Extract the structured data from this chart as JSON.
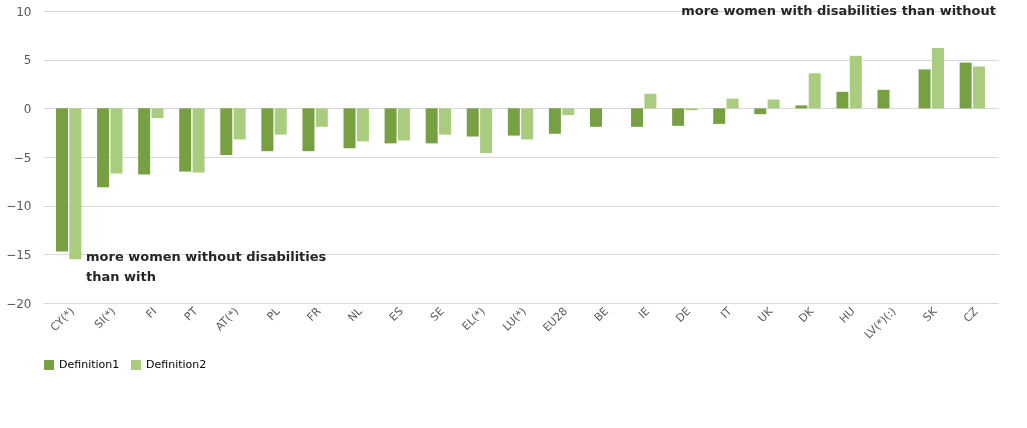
{
  "chart_data": {
    "type": "bar",
    "categories": [
      "CY(*)",
      "SI(*)",
      "FI",
      "PT",
      "AT(*)",
      "PL",
      "FR",
      "NL",
      "ES",
      "SE",
      "EL(*)",
      "LU(*)",
      "EU28",
      "BE",
      "IE",
      "DE",
      "IT",
      "UK",
      "DK",
      "HU",
      "LV(*)(:)",
      "SK",
      "CZ"
    ],
    "series": [
      {
        "name": "Definition1",
        "color": "#77a043",
        "values": [
          -14.7,
          -8.1,
          -6.8,
          -6.5,
          -4.8,
          -4.4,
          -4.4,
          -4.1,
          -3.6,
          -3.6,
          -2.9,
          -2.8,
          -2.6,
          -1.9,
          -1.9,
          -1.8,
          -1.6,
          -0.6,
          0.3,
          1.7,
          1.9,
          4.0,
          4.7
        ]
      },
      {
        "name": "Definition2",
        "color": "#a9cc7e",
        "values": [
          -15.5,
          -6.7,
          -1.0,
          -6.6,
          -3.2,
          -2.7,
          -1.9,
          -3.4,
          -3.3,
          -2.7,
          -4.6,
          -3.2,
          -0.7,
          null,
          1.5,
          -0.2,
          1.0,
          0.9,
          3.6,
          5.4,
          null,
          6.2,
          4.3
        ]
      }
    ],
    "ylim": [
      -20,
      10
    ],
    "yticks": [
      -20,
      -15,
      -10,
      -5,
      0,
      5,
      10
    ],
    "grid": "y",
    "legend": "bottom",
    "annotations": [
      "more women without disabilities\nthan with",
      "more women with disabilities  than without"
    ]
  }
}
